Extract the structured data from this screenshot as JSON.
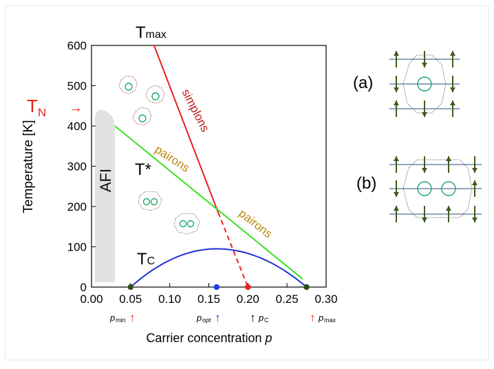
{
  "chart_data": {
    "type": "line",
    "xlabel": "Carrier concentration",
    "xlabel_var": "p",
    "ylabel": "Temperature [K]",
    "xlim": [
      0.0,
      0.3
    ],
    "ylim": [
      0,
      600
    ],
    "x_ticks": [
      "0.00",
      "0.05",
      "0.10",
      "0.15",
      "0.20",
      "0.25",
      "0.30"
    ],
    "y_ticks": [
      "0",
      "100",
      "200",
      "300",
      "400",
      "500",
      "600"
    ],
    "series": [
      {
        "name": "simplons",
        "color": "#e8201c",
        "points": [
          [
            0.08,
            600
          ],
          [
            0.162,
            185
          ]
        ],
        "dashed_points": [
          [
            0.162,
            185
          ],
          [
            0.2,
            0
          ]
        ]
      },
      {
        "name": "pairons",
        "color": "#36e01f",
        "points": [
          [
            0.03,
            400
          ],
          [
            0.27,
            20
          ]
        ]
      },
      {
        "name": "Tc",
        "color": "#1f2fd6",
        "dome": {
          "p_min": 0.05,
          "p_max": 0.275,
          "peak": 95,
          "p_opt": 0.16
        }
      }
    ],
    "afi_region": {
      "label": "AFI",
      "x": [
        0.005,
        0.03
      ],
      "top": 435,
      "color": "#e2e2e2"
    },
    "markers": [
      {
        "x": 0.05,
        "y": 0,
        "color": "#2e4a1a"
      },
      {
        "x": 0.16,
        "y": 0,
        "color": "#2040e0"
      },
      {
        "x": 0.2,
        "y": 0,
        "color": "#e8201c"
      },
      {
        "x": 0.275,
        "y": 0,
        "color": "#2e4a1a"
      }
    ]
  },
  "labels": {
    "t_max_main": "T",
    "t_max_sub": "max",
    "t_n_main": "T",
    "t_n_sub": "N",
    "t_n_arrow": "→",
    "t_star": "T*",
    "t_c_main": "T",
    "t_c_sub": "C",
    "simplons": "simplons",
    "pairons_upper": "pairons",
    "pairons_lower": "pairons",
    "afi": "AFI"
  },
  "p_labels": {
    "pmin_var": "p",
    "pmin_sub": "min",
    "popt_var": "p",
    "popt_sub": "opt",
    "pc_var": "p",
    "pc_sub": "C",
    "pmax_var": "p",
    "pmax_sub": "max",
    "arrow": "↑"
  },
  "panels": {
    "a_label": "(a)",
    "b_label": "(b)"
  },
  "colors": {
    "red": "#e8201c",
    "green": "#36e01f",
    "blue": "#1f2fd6",
    "gold": "#b8860b",
    "dark_green": "#3d5a1e",
    "teal": "#1aa866"
  }
}
